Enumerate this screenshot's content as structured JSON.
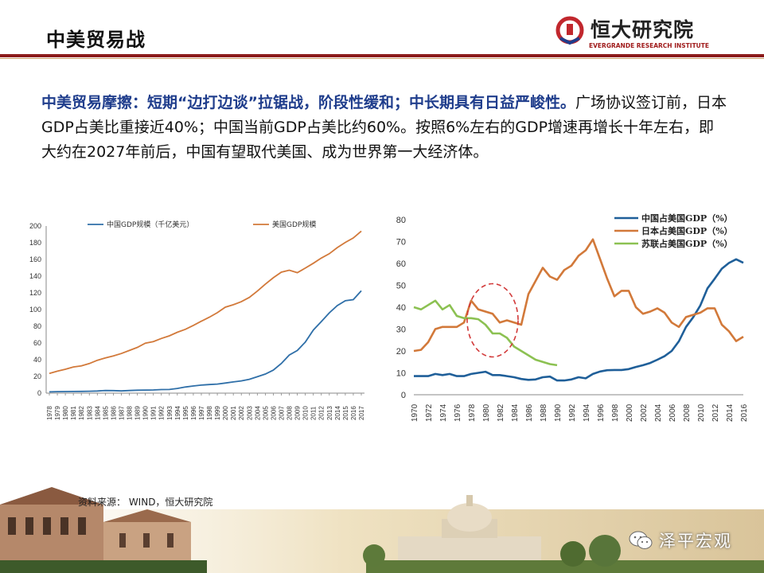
{
  "header": {
    "title": "中美贸易战",
    "logo_name": "恒大研究院",
    "logo_sub": "EVERGRANDE RESEARCH INSTITUTE",
    "accent": "#8b1a1a"
  },
  "body": {
    "headline": "中美贸易摩擦：短期“边打边谈”拉锯战，阶段性缓和；中长期具有日益严峻性。",
    "text": "广场协议签订前，日本GDP占美比重接近40%；中国当前GDP占美比约60%。按照6%左右的GDP增速再增长十年左右，即大约在2027年前后，中国有望取代美国、成为世界第一大经济体。"
  },
  "source": "资料来源：  WIND，恒大研究院",
  "watermark": "泽平宏观",
  "chart_data": [
    {
      "type": "line",
      "title": "",
      "xlabel": "",
      "ylabel": "",
      "ylim": [
        0,
        200
      ],
      "yticks": [
        0,
        20,
        40,
        60,
        80,
        100,
        120,
        140,
        160,
        180,
        200
      ],
      "x": [
        1978,
        1979,
        1980,
        1981,
        1982,
        1983,
        1984,
        1985,
        1986,
        1987,
        1988,
        1989,
        1990,
        1991,
        1992,
        1993,
        1994,
        1995,
        1996,
        1997,
        1998,
        1999,
        2000,
        2001,
        2002,
        2003,
        2004,
        2005,
        2006,
        2007,
        2008,
        2009,
        2010,
        2011,
        2012,
        2013,
        2014,
        2015,
        2016,
        2017
      ],
      "legend_position": "top",
      "grid": false,
      "series": [
        {
          "name": "中国GDP规模（千亿美元）",
          "color": "#2f6fa8",
          "values": [
            1.5,
            1.8,
            1.9,
            2.0,
            2.1,
            2.3,
            2.6,
            3.1,
            3.0,
            2.7,
            3.1,
            3.5,
            3.6,
            3.8,
            4.3,
            4.4,
            5.6,
            7.3,
            8.6,
            9.6,
            10.3,
            10.9,
            12.1,
            13.4,
            14.7,
            16.6,
            19.6,
            22.9,
            27.5,
            35.5,
            45.6,
            51.0,
            61.0,
            75.5,
            85.6,
            96.1,
            104.8,
            110.6,
            111.9,
            122.5
          ]
        },
        {
          "name": "美国GDP规模",
          "color": "#d2793a",
          "values": [
            23.5,
            26.3,
            28.6,
            31.3,
            32.6,
            35.4,
            39.3,
            42.2,
            44.6,
            47.4,
            51.0,
            54.8,
            59.8,
            61.7,
            65.4,
            68.6,
            72.9,
            76.4,
            81.0,
            86.1,
            90.9,
            96.3,
            102.9,
            105.8,
            109.4,
            114.6,
            122.1,
            130.4,
            138.1,
            144.8,
            147.1,
            144.2,
            149.6,
            155.4,
            161.6,
            166.9,
            174.2,
            180.4,
            185.7,
            193.9
          ]
        }
      ]
    },
    {
      "type": "line",
      "title": "",
      "xlabel": "",
      "ylabel": "",
      "ylim": [
        0,
        80
      ],
      "yticks": [
        0,
        10,
        20,
        30,
        40,
        50,
        60,
        70,
        80
      ],
      "x_tick_labels": [
        1970,
        1972,
        1974,
        1976,
        1978,
        1980,
        1982,
        1984,
        1986,
        1988,
        1990,
        1992,
        1994,
        1996,
        1998,
        2000,
        2002,
        2004,
        2006,
        2008,
        2010,
        2012,
        2014,
        2016
      ],
      "legend_position": "top-right",
      "grid": false,
      "annotation": "dashed red ellipse around 1978–1984",
      "series": [
        {
          "name": "中国占美国GDP（%）",
          "color": "#1f5f99",
          "x": [
            1970,
            1971,
            1972,
            1973,
            1974,
            1975,
            1976,
            1977,
            1978,
            1979,
            1980,
            1981,
            1982,
            1983,
            1984,
            1985,
            1986,
            1987,
            1988,
            1989,
            1990,
            1991,
            1992,
            1993,
            1994,
            1995,
            1996,
            1997,
            1998,
            1999,
            2000,
            2001,
            2002,
            2003,
            2004,
            2005,
            2006,
            2007,
            2008,
            2009,
            2010,
            2011,
            2012,
            2013,
            2014,
            2015,
            2016
          ],
          "values": [
            8.5,
            8.5,
            8.5,
            9.5,
            9.0,
            9.5,
            8.5,
            8.5,
            9.5,
            10,
            10.5,
            9,
            9,
            8.5,
            8,
            7.2,
            6.8,
            7.0,
            8.0,
            8.3,
            6.5,
            6.5,
            7.0,
            8.0,
            7.5,
            9.5,
            10.6,
            11.2,
            11.3,
            11.3,
            11.7,
            12.7,
            13.5,
            14.5,
            16.0,
            17.6,
            20.0,
            24.4,
            31.0,
            35.4,
            40.8,
            48.6,
            53.0,
            57.6,
            60.2,
            61.9,
            60.3
          ]
        },
        {
          "name": "日本占美国GDP（%）",
          "color": "#d2793a",
          "x": [
            1970,
            1971,
            1972,
            1973,
            1974,
            1975,
            1976,
            1977,
            1978,
            1979,
            1980,
            1981,
            1982,
            1983,
            1984,
            1985,
            1986,
            1987,
            1988,
            1989,
            1990,
            1991,
            1992,
            1993,
            1994,
            1995,
            1996,
            1997,
            1998,
            1999,
            2000,
            2001,
            2002,
            2003,
            2004,
            2005,
            2006,
            2007,
            2008,
            2009,
            2010,
            2011,
            2012,
            2013,
            2014,
            2015,
            2016
          ],
          "values": [
            20,
            20.5,
            24,
            30,
            31,
            31,
            31,
            33,
            43,
            39,
            38,
            37,
            33,
            34,
            33,
            32,
            46,
            52,
            58,
            54,
            52.5,
            57,
            59,
            63.5,
            66,
            71,
            62,
            53,
            45,
            47.5,
            47.5,
            40,
            37,
            38,
            39.5,
            37.5,
            33,
            31,
            35.5,
            36.5,
            37.5,
            39.5,
            39.5,
            32,
            29,
            24.5,
            26.5
          ]
        },
        {
          "name": "苏联占美国GDP（%）",
          "color": "#8cc152",
          "x": [
            1970,
            1971,
            1972,
            1973,
            1974,
            1975,
            1976,
            1977,
            1978,
            1979,
            1980,
            1981,
            1982,
            1983,
            1984,
            1985,
            1986,
            1987,
            1988,
            1989,
            1990
          ],
          "values": [
            40,
            39,
            41,
            43,
            39,
            41,
            36,
            35,
            35,
            34.5,
            32,
            28,
            28,
            26,
            22,
            20,
            18,
            16,
            15,
            14,
            13.5
          ]
        }
      ]
    }
  ]
}
